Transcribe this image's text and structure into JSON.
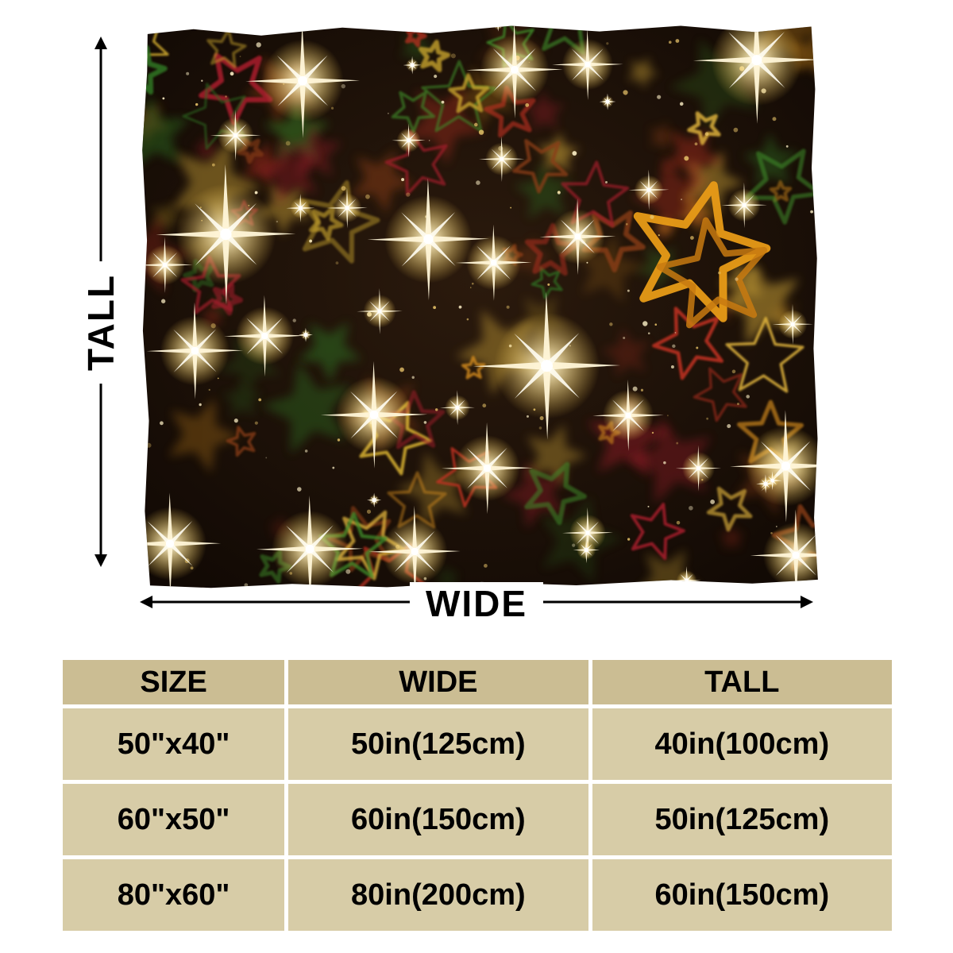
{
  "diagram": {
    "tall_label": "TALL",
    "wide_label": "WIDE"
  },
  "size_table": {
    "headers": [
      "SIZE",
      "WIDE",
      "TALL"
    ],
    "rows": [
      [
        "50\"x40\"",
        "50in(125cm)",
        "40in(100cm)"
      ],
      [
        "60\"x50\"",
        "60in(150cm)",
        "50in(125cm)"
      ],
      [
        "80\"x60\"",
        "80in(200cm)",
        "60in(150cm)"
      ]
    ],
    "header_bg": "#cbbd93",
    "row_bg": "#d7cca7"
  },
  "blanket": {
    "description": "christmas-stars-sparkle-pattern",
    "base_color": "#1a0f07",
    "star_colors": [
      "#d28a1e",
      "#c23320",
      "#3f8f2a",
      "#caa62f",
      "#8a3c14",
      "#2f6f22",
      "#a01c2a",
      "#e0b43c"
    ],
    "feature_star_color": "#e89b17",
    "glow_color": "#ffe9a8"
  }
}
